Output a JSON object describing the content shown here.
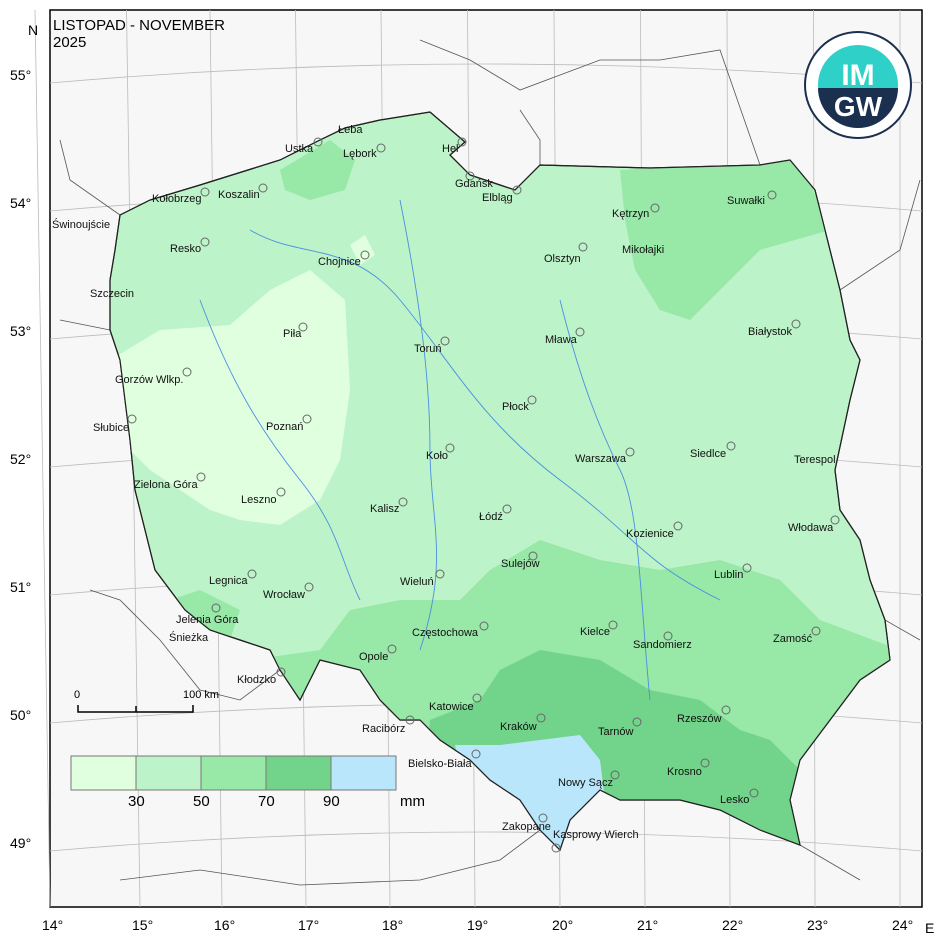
{
  "map": {
    "title_line1": "LISTOPAD - NOVEMBER",
    "title_line2": "2025",
    "logo_text": "IMGW - Instytut Meteorologii i Gospodarki Wodnej - Państwowy Instytut Badawczy",
    "north_label": "N",
    "east_label": "E",
    "lat_labels": [
      "55°",
      "54°",
      "53°",
      "52°",
      "51°",
      "50°",
      "49°"
    ],
    "lon_labels": [
      "14°",
      "15°",
      "16°",
      "17°",
      "18°",
      "19°",
      "20°",
      "21°",
      "22°",
      "23°",
      "24°"
    ],
    "scale_bar": {
      "start": "0",
      "end": "100 km"
    },
    "legend": {
      "unit": "mm",
      "breaks": [
        "30",
        "50",
        "70",
        "90"
      ],
      "classes": [
        {
          "range": "<30",
          "color": "#dfffdf"
        },
        {
          "range": "30-50",
          "color": "#bdf3c8"
        },
        {
          "range": "50-70",
          "color": "#98e8a8"
        },
        {
          "range": "70-90",
          "color": "#72d48a"
        },
        {
          "range": ">90",
          "color": "#b9e6fa"
        }
      ]
    },
    "cities": [
      "Łeba",
      "Ustka",
      "Lębork",
      "Hel",
      "Gdańsk",
      "Elbląg",
      "Kołobrzeg",
      "Koszalin",
      "Świnoujście",
      "Resko",
      "Chojnice",
      "Olsztyn",
      "Kętrzyn",
      "Mikołajki",
      "Suwałki",
      "Szczecin",
      "Piła",
      "Toruń",
      "Mława",
      "Białystok",
      "Gorzów Wlkp.",
      "Płock",
      "Słubice",
      "Poznań",
      "Koło",
      "Warszawa",
      "Siedlce",
      "Terespol",
      "Zielona Góra",
      "Leszno",
      "Kalisz",
      "Łódź",
      "Kozienice",
      "Włodawa",
      "Sulejów",
      "Lublin",
      "Legnica",
      "Wrocław",
      "Wieluń",
      "Jelenia Góra",
      "Śnieżka",
      "Częstochowa",
      "Kielce",
      "Sandomierz",
      "Zamość",
      "Opole",
      "Kłodzko",
      "Katowice",
      "Racibórz",
      "Kraków",
      "Tarnów",
      "Rzeszów",
      "Bielsko-Biała",
      "Nowy Sącz",
      "Krosno",
      "Lesko",
      "Zakopane",
      "Kasprowy Wierch"
    ]
  }
}
